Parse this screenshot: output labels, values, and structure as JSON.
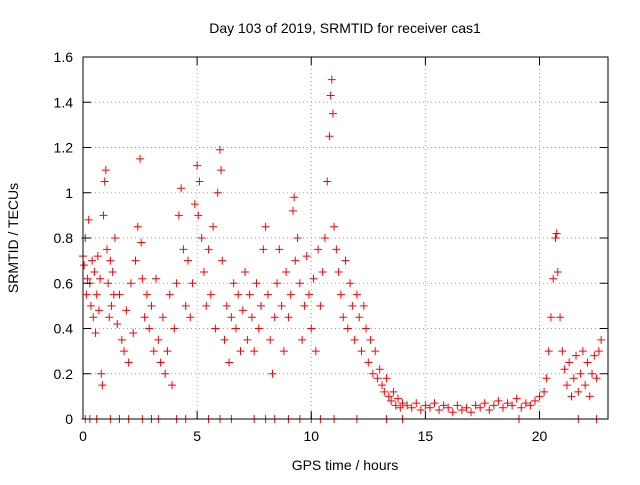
{
  "chart_data": {
    "type": "scatter",
    "title": "Day 103 of 2019, SRMTID for receiver cas1",
    "xlabel": "GPS time / hours",
    "ylabel": "SRMTID / TECUs",
    "xlim": [
      0,
      23
    ],
    "ylim": [
      0,
      1.6
    ],
    "x_ticks": [
      0,
      5,
      10,
      15,
      20
    ],
    "y_ticks": [
      0,
      0.2,
      0.4,
      0.6,
      0.8,
      1,
      1.2,
      1.4,
      1.6
    ],
    "x_tick_labels": [
      "0",
      "5",
      "10",
      "15",
      "20"
    ],
    "y_tick_labels": [
      "0",
      "0.2",
      "0.4",
      "0.6",
      "0.8",
      "1",
      "1.2",
      "1.4",
      "1.6"
    ],
    "grid": true,
    "marker": "+",
    "color": "#ff0000",
    "series": [
      {
        "name": "SRMTID",
        "points": [
          [
            0.0,
            0.72
          ],
          [
            0.05,
            0.68
          ],
          [
            0.1,
            0.8
          ],
          [
            0.15,
            0.55
          ],
          [
            0.2,
            0.62
          ],
          [
            0.25,
            0.88
          ],
          [
            0.3,
            0.6
          ],
          [
            0.35,
            0.5
          ],
          [
            0.4,
            0.7
          ],
          [
            0.45,
            0.45
          ],
          [
            0.5,
            0.65
          ],
          [
            0.55,
            0.38
          ],
          [
            0.6,
            0.55
          ],
          [
            0.65,
            0.72
          ],
          [
            0.7,
            0.48
          ],
          [
            0.75,
            0.62
          ],
          [
            0.8,
            0.2
          ],
          [
            0.85,
            0.15
          ],
          [
            0.9,
            0.9
          ],
          [
            0.95,
            1.05
          ],
          [
            1.0,
            1.1
          ],
          [
            1.05,
            0.75
          ],
          [
            1.1,
            0.6
          ],
          [
            1.15,
            0.45
          ],
          [
            1.2,
            0.7
          ],
          [
            1.25,
            0.5
          ],
          [
            1.3,
            0.65
          ],
          [
            1.35,
            0.55
          ],
          [
            1.4,
            0.8
          ],
          [
            1.5,
            0.42
          ],
          [
            1.6,
            0.55
          ],
          [
            1.7,
            0.35
          ],
          [
            1.8,
            0.3
          ],
          [
            1.9,
            0.48
          ],
          [
            2.0,
            0.25
          ],
          [
            2.1,
            0.6
          ],
          [
            2.2,
            0.38
          ],
          [
            2.3,
            0.7
          ],
          [
            2.4,
            0.85
          ],
          [
            2.5,
            1.15
          ],
          [
            2.55,
            0.78
          ],
          [
            2.6,
            0.62
          ],
          [
            2.7,
            0.45
          ],
          [
            2.8,
            0.55
          ],
          [
            2.9,
            0.4
          ],
          [
            3.0,
            0.5
          ],
          [
            3.1,
            0.3
          ],
          [
            3.2,
            0.62
          ],
          [
            3.3,
            0.35
          ],
          [
            3.4,
            0.25
          ],
          [
            3.5,
            0.45
          ],
          [
            3.6,
            0.2
          ],
          [
            3.7,
            0.3
          ],
          [
            3.8,
            0.55
          ],
          [
            3.9,
            0.15
          ],
          [
            4.0,
            0.4
          ],
          [
            4.1,
            0.6
          ],
          [
            4.2,
            0.9
          ],
          [
            4.3,
            1.02
          ],
          [
            4.4,
            0.75
          ],
          [
            4.5,
            0.5
          ],
          [
            4.6,
            0.7
          ],
          [
            4.7,
            0.45
          ],
          [
            4.8,
            0.6
          ],
          [
            4.9,
            0.95
          ],
          [
            5.0,
            1.12
          ],
          [
            5.05,
            0.9
          ],
          [
            5.1,
            1.05
          ],
          [
            5.2,
            0.8
          ],
          [
            5.3,
            0.65
          ],
          [
            5.4,
            0.5
          ],
          [
            5.5,
            0.75
          ],
          [
            5.6,
            0.55
          ],
          [
            5.7,
            0.85
          ],
          [
            5.8,
            0.4
          ],
          [
            5.9,
            1.0
          ],
          [
            6.0,
            1.19
          ],
          [
            6.05,
            1.1
          ],
          [
            6.1,
            0.7
          ],
          [
            6.2,
            0.35
          ],
          [
            6.3,
            0.5
          ],
          [
            6.4,
            0.25
          ],
          [
            6.5,
            0.45
          ],
          [
            6.6,
            0.6
          ],
          [
            6.7,
            0.4
          ],
          [
            6.8,
            0.55
          ],
          [
            6.9,
            0.3
          ],
          [
            7.0,
            0.48
          ],
          [
            7.1,
            0.65
          ],
          [
            7.2,
            0.35
          ],
          [
            7.3,
            0.55
          ],
          [
            7.4,
            0.45
          ],
          [
            7.5,
            0.3
          ],
          [
            7.6,
            0.6
          ],
          [
            7.7,
            0.4
          ],
          [
            7.8,
            0.5
          ],
          [
            7.9,
            0.75
          ],
          [
            8.0,
            0.85
          ],
          [
            8.1,
            0.55
          ],
          [
            8.2,
            0.35
          ],
          [
            8.3,
            0.2
          ],
          [
            8.4,
            0.45
          ],
          [
            8.5,
            0.6
          ],
          [
            8.6,
            0.75
          ],
          [
            8.7,
            0.5
          ],
          [
            8.8,
            0.3
          ],
          [
            8.9,
            0.65
          ],
          [
            9.0,
            0.45
          ],
          [
            9.1,
            0.55
          ],
          [
            9.2,
            0.92
          ],
          [
            9.25,
            0.98
          ],
          [
            9.3,
            0.7
          ],
          [
            9.4,
            0.8
          ],
          [
            9.5,
            0.6
          ],
          [
            9.6,
            0.35
          ],
          [
            9.7,
            0.5
          ],
          [
            9.8,
            0.72
          ],
          [
            9.9,
            0.55
          ],
          [
            10.0,
            0.4
          ],
          [
            10.1,
            0.62
          ],
          [
            10.2,
            0.3
          ],
          [
            10.3,
            0.75
          ],
          [
            10.4,
            0.5
          ],
          [
            10.5,
            0.65
          ],
          [
            10.6,
            0.8
          ],
          [
            10.7,
            1.05
          ],
          [
            10.8,
            1.25
          ],
          [
            10.85,
            1.43
          ],
          [
            10.9,
            1.5
          ],
          [
            10.95,
            1.35
          ],
          [
            11.0,
            0.85
          ],
          [
            11.1,
            0.75
          ],
          [
            11.2,
            0.65
          ],
          [
            11.3,
            0.55
          ],
          [
            11.4,
            0.45
          ],
          [
            11.5,
            0.7
          ],
          [
            11.6,
            0.4
          ],
          [
            11.7,
            0.6
          ],
          [
            11.8,
            0.5
          ],
          [
            11.9,
            0.35
          ],
          [
            12.0,
            0.55
          ],
          [
            12.1,
            0.45
          ],
          [
            12.2,
            0.3
          ],
          [
            12.3,
            0.5
          ],
          [
            12.4,
            0.4
          ],
          [
            12.5,
            0.25
          ],
          [
            12.6,
            0.35
          ],
          [
            12.7,
            0.2
          ],
          [
            12.8,
            0.3
          ],
          [
            12.9,
            0.18
          ],
          [
            13.0,
            0.22
          ],
          [
            13.1,
            0.15
          ],
          [
            13.2,
            0.12
          ],
          [
            13.3,
            0.18
          ],
          [
            13.4,
            0.1
          ],
          [
            13.5,
            0.08
          ],
          [
            13.6,
            0.12
          ],
          [
            13.7,
            0.06
          ],
          [
            13.8,
            0.09
          ],
          [
            13.9,
            0.05
          ],
          [
            14.0,
            0.07
          ],
          [
            14.2,
            0.06
          ],
          [
            14.4,
            0.05
          ],
          [
            14.6,
            0.07
          ],
          [
            14.8,
            0.04
          ],
          [
            15.0,
            0.06
          ],
          [
            15.2,
            0.05
          ],
          [
            15.4,
            0.07
          ],
          [
            15.6,
            0.04
          ],
          [
            15.8,
            0.06
          ],
          [
            16.0,
            0.05
          ],
          [
            16.2,
            0.03
          ],
          [
            16.4,
            0.06
          ],
          [
            16.6,
            0.04
          ],
          [
            16.8,
            0.05
          ],
          [
            17.0,
            0.03
          ],
          [
            17.2,
            0.06
          ],
          [
            17.4,
            0.05
          ],
          [
            17.6,
            0.07
          ],
          [
            17.8,
            0.04
          ],
          [
            18.0,
            0.06
          ],
          [
            18.2,
            0.08
          ],
          [
            18.4,
            0.05
          ],
          [
            18.6,
            0.07
          ],
          [
            18.8,
            0.06
          ],
          [
            19.0,
            0.09
          ],
          [
            19.2,
            0.05
          ],
          [
            19.4,
            0.07
          ],
          [
            19.6,
            0.06
          ],
          [
            19.8,
            0.08
          ],
          [
            20.0,
            0.1
          ],
          [
            20.2,
            0.12
          ],
          [
            20.3,
            0.18
          ],
          [
            20.4,
            0.3
          ],
          [
            20.5,
            0.45
          ],
          [
            20.6,
            0.62
          ],
          [
            20.7,
            0.8
          ],
          [
            20.75,
            0.82
          ],
          [
            20.8,
            0.65
          ],
          [
            20.9,
            0.45
          ],
          [
            21.0,
            0.3
          ],
          [
            21.1,
            0.22
          ],
          [
            21.2,
            0.15
          ],
          [
            21.3,
            0.25
          ],
          [
            21.4,
            0.1
          ],
          [
            21.5,
            0.18
          ],
          [
            21.6,
            0.28
          ],
          [
            21.7,
            0.12
          ],
          [
            21.8,
            0.2
          ],
          [
            21.9,
            0.3
          ],
          [
            22.0,
            0.15
          ],
          [
            22.1,
            0.25
          ],
          [
            22.2,
            0.1
          ],
          [
            22.3,
            0.2
          ],
          [
            22.4,
            0.28
          ],
          [
            22.5,
            0.18
          ],
          [
            22.6,
            0.3
          ],
          [
            22.7,
            0.35
          ],
          [
            0.1,
            0.0
          ],
          [
            0.3,
            0.0
          ],
          [
            0.6,
            0.0
          ],
          [
            1.2,
            0.0
          ],
          [
            1.6,
            0.0
          ],
          [
            2.0,
            0.0
          ],
          [
            2.6,
            0.0
          ],
          [
            3.0,
            0.0
          ],
          [
            3.3,
            0.0
          ],
          [
            4.1,
            0.0
          ],
          [
            4.5,
            0.0
          ],
          [
            5.5,
            0.0
          ],
          [
            6.0,
            0.0
          ],
          [
            6.5,
            0.0
          ],
          [
            7.5,
            0.0
          ],
          [
            8.0,
            0.0
          ],
          [
            8.4,
            0.0
          ],
          [
            9.0,
            0.0
          ],
          [
            9.5,
            0.0
          ],
          [
            10.0,
            0.0
          ],
          [
            10.4,
            0.0
          ],
          [
            11.0,
            0.0
          ],
          [
            12.0,
            0.0
          ],
          [
            13.3,
            0.0
          ],
          [
            14.0,
            0.0
          ],
          [
            19.1,
            0.0
          ],
          [
            21.7,
            0.0
          ],
          [
            22.5,
            0.0
          ]
        ]
      }
    ]
  }
}
